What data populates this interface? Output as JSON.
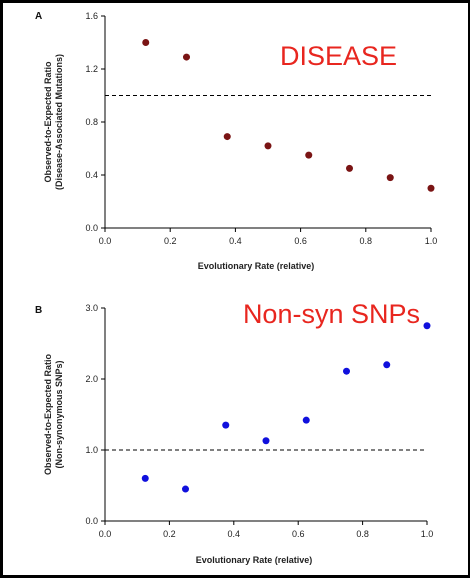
{
  "chart_data": [
    {
      "type": "scatter",
      "panel_label": "A",
      "annotation": "DISEASE",
      "xlabel": "Evolutionary Rate (relative)",
      "ylabel": [
        "Observed-to-Expected Ratio",
        "(Disease-Associated Mutations)"
      ],
      "xlim": [
        0,
        1.0
      ],
      "ylim": [
        0,
        1.6
      ],
      "x_ticks": [
        "0.0",
        "0.2",
        "0.4",
        "0.6",
        "0.8",
        "1.0"
      ],
      "y_ticks": [
        "0.0",
        "0.4",
        "0.8",
        "1.2",
        "1.6"
      ],
      "reference_line": 1.0,
      "marker_color": "#7a1414",
      "annotation_color": "#e8261f",
      "points": [
        {
          "x": 0.125,
          "y": 1.4
        },
        {
          "x": 0.25,
          "y": 1.29
        },
        {
          "x": 0.375,
          "y": 0.69
        },
        {
          "x": 0.5,
          "y": 0.62
        },
        {
          "x": 0.625,
          "y": 0.55
        },
        {
          "x": 0.75,
          "y": 0.45
        },
        {
          "x": 0.875,
          "y": 0.38
        },
        {
          "x": 1.0,
          "y": 0.3
        }
      ]
    },
    {
      "type": "scatter",
      "panel_label": "B",
      "annotation": "Non-syn SNPs",
      "xlabel": "Evolutionary Rate (relative)",
      "ylabel": [
        "Observed-to-Expected Ratio",
        "(Non-synonymous SNPs)"
      ],
      "xlim": [
        0,
        1.0
      ],
      "ylim": [
        0,
        3.0
      ],
      "x_ticks": [
        "0.0",
        "0.2",
        "0.4",
        "0.6",
        "0.8",
        "1.0"
      ],
      "y_ticks": [
        "0.0",
        "1.0",
        "2.0",
        "3.0"
      ],
      "reference_line": 1.0,
      "marker_color": "#1010dd",
      "annotation_color": "#e8261f",
      "points": [
        {
          "x": 0.125,
          "y": 0.6
        },
        {
          "x": 0.25,
          "y": 0.45
        },
        {
          "x": 0.375,
          "y": 1.35
        },
        {
          "x": 0.5,
          "y": 1.13
        },
        {
          "x": 0.625,
          "y": 1.42
        },
        {
          "x": 0.75,
          "y": 2.11
        },
        {
          "x": 0.875,
          "y": 2.2
        },
        {
          "x": 1.0,
          "y": 2.75
        }
      ]
    }
  ]
}
